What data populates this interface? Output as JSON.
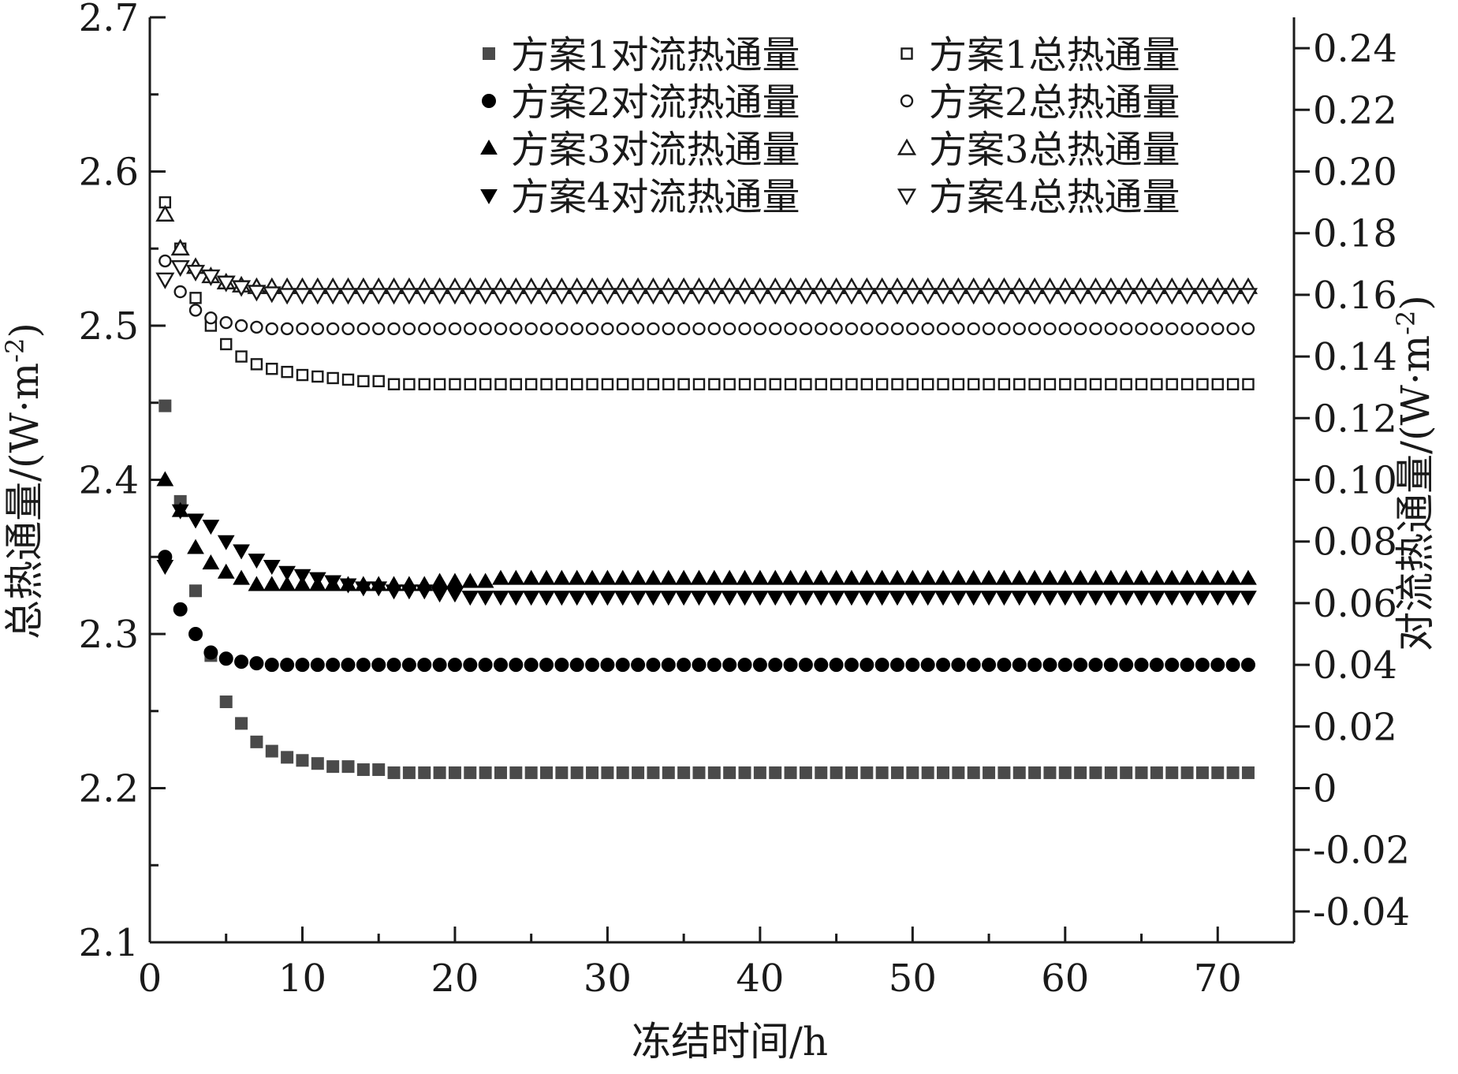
{
  "chart_data": {
    "type": "scatter",
    "xlabel": "冻结时间/h",
    "ylabel_left": "总热通量/(W·m",
    "ylabel_right": "对流热通量/(W·m",
    "ylabel_sup": "-2",
    "ylabel_close": ")",
    "x_ticks": [
      "0",
      "10",
      "20",
      "30",
      "40",
      "50",
      "60",
      "70"
    ],
    "y_left_ticks": [
      "2.1",
      "2.2",
      "2.3",
      "2.4",
      "2.5",
      "2.6",
      "2.7"
    ],
    "y_right_ticks": [
      "-0.04",
      "-0.02",
      "0",
      "0.02",
      "0.04",
      "0.06",
      "0.08",
      "0.10",
      "0.12",
      "0.14",
      "0.16",
      "0.18",
      "0.20",
      "0.22",
      "0.24"
    ],
    "xlim": [
      0,
      75
    ],
    "ylim_left": [
      2.1,
      2.7
    ],
    "ylim_right": [
      -0.05,
      0.25
    ],
    "legend_position": "top-right",
    "x": [
      1,
      2,
      3,
      4,
      5,
      6,
      7,
      8,
      9,
      10,
      11,
      12,
      13,
      14,
      15,
      16,
      17,
      18,
      19,
      20,
      21,
      22,
      23,
      24,
      25,
      26,
      27,
      28,
      29,
      30,
      31,
      32,
      33,
      34,
      35,
      36,
      37,
      38,
      39,
      40,
      41,
      42,
      43,
      44,
      45,
      46,
      47,
      48,
      49,
      50,
      51,
      52,
      53,
      54,
      55,
      56,
      57,
      58,
      59,
      60,
      61,
      62,
      63,
      64,
      65,
      66,
      67,
      68,
      69,
      70,
      71,
      72
    ],
    "series": [
      {
        "name": "方案1对流热通量",
        "axis": "right",
        "marker": "square-filled",
        "initial": 0.124,
        "final": 0.005,
        "decay": 0.45,
        "first_points": [
          0.124,
          0.093,
          0.064,
          0.043,
          0.028,
          0.021,
          0.015,
          0.012,
          0.01,
          0.009,
          0.008,
          0.007,
          0.007,
          0.006,
          0.006
        ]
      },
      {
        "name": "方案1总热通量",
        "axis": "left",
        "marker": "square-open",
        "initial": 2.58,
        "final": 2.462,
        "decay": 0.45,
        "first_points": [
          2.58,
          2.55,
          2.518,
          2.5,
          2.488,
          2.48,
          2.475,
          2.472,
          2.47,
          2.468,
          2.467,
          2.466,
          2.465,
          2.464,
          2.464
        ]
      },
      {
        "name": "方案2对流热通量",
        "axis": "right",
        "marker": "circle-filled",
        "initial": 0.075,
        "final": 0.04,
        "decay": 0.7,
        "first_points": [
          0.075,
          0.058,
          0.05,
          0.044,
          0.042,
          0.041,
          0.0405
        ]
      },
      {
        "name": "方案2总热通量",
        "axis": "left",
        "marker": "circle-open",
        "initial": 2.542,
        "final": 2.498,
        "decay": 0.7,
        "first_points": [
          2.542,
          2.522,
          2.51,
          2.505,
          2.502,
          2.5,
          2.499
        ]
      },
      {
        "name": "方案3对流热通量",
        "axis": "right",
        "marker": "triangle-up-filled",
        "initial": 0.1,
        "final": 0.068,
        "decay": 0.7,
        "first_points": [
          0.1,
          0.09,
          0.078,
          0.073,
          0.07,
          0.068,
          0.066,
          0.066,
          0.066,
          0.066,
          0.066,
          0.066,
          0.066,
          0.066,
          0.066,
          0.066,
          0.066,
          0.066,
          0.067,
          0.067,
          0.067,
          0.067,
          0.068,
          0.068,
          0.068,
          0.068,
          0.068,
          0.068
        ]
      },
      {
        "name": "方案3总热通量",
        "axis": "left",
        "marker": "triangle-up-open",
        "initial": 2.572,
        "final": 2.525,
        "decay": 0.7,
        "first_points": [
          2.572,
          2.55,
          2.538,
          2.532,
          2.528,
          2.526,
          2.525
        ]
      },
      {
        "name": "方案4对流热通量",
        "axis": "right",
        "marker": "triangle-down-filled",
        "initial": 0.072,
        "final": 0.062,
        "decay": 0.35,
        "first_points": [
          0.072,
          0.09,
          0.087,
          0.085,
          0.08,
          0.077,
          0.074,
          0.072,
          0.07,
          0.069,
          0.068,
          0.067,
          0.066,
          0.065,
          0.065,
          0.064,
          0.064,
          0.064,
          0.063,
          0.063
        ]
      },
      {
        "name": "方案4总热通量",
        "axis": "left",
        "marker": "triangle-down-open",
        "initial": 2.53,
        "final": 2.52,
        "decay": 0.35,
        "first_points": [
          2.53,
          2.538,
          2.535,
          2.532,
          2.528,
          2.525,
          2.522,
          2.521,
          2.52
        ]
      }
    ]
  }
}
